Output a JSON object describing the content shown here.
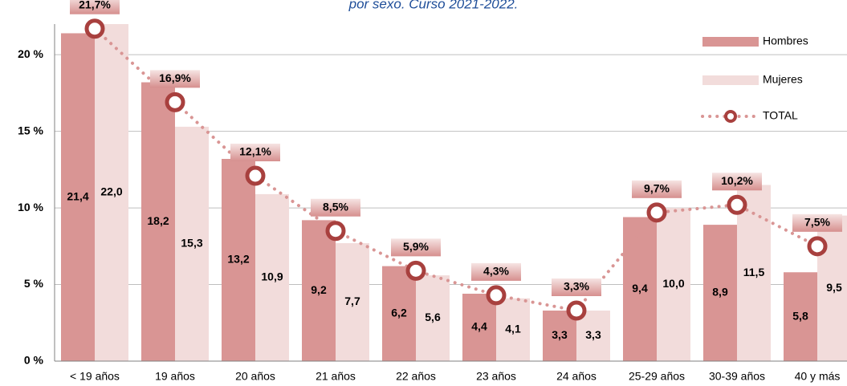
{
  "chart_data": {
    "type": "bar",
    "title": "por sexo. Curso 2021-2022.",
    "categories": [
      "< 19 años",
      "19 años",
      "20 años",
      "21 años",
      "22 años",
      "23 años",
      "24 años",
      "25-29 años",
      "30-39 años",
      "40 y más"
    ],
    "series": [
      {
        "name": "Hombres",
        "color": "#d99594",
        "values": [
          21.4,
          18.2,
          13.2,
          9.2,
          6.2,
          4.4,
          3.3,
          9.4,
          8.9,
          5.8
        ],
        "value_labels": [
          "21,4",
          "18,2",
          "13,2",
          "9,2",
          "6,2",
          "4,4",
          "3,3",
          "9,4",
          "8,9",
          "5,8"
        ]
      },
      {
        "name": "Mujeres",
        "color": "#f2dcdb",
        "values": [
          22.0,
          15.3,
          10.9,
          7.7,
          5.6,
          4.1,
          3.3,
          10.0,
          11.5,
          9.5
        ],
        "value_labels": [
          "22,0",
          "15,3",
          "10,9",
          "7,7",
          "5,6",
          "4,1",
          "3,3",
          "10,0",
          "11,5",
          "9,5"
        ]
      },
      {
        "name": "TOTAL",
        "type": "line",
        "color": "#d99594",
        "marker_color": "#a8403e",
        "values": [
          21.7,
          16.9,
          12.1,
          8.5,
          5.9,
          4.3,
          3.3,
          9.7,
          10.2,
          7.5
        ],
        "value_labels": [
          "21,7%",
          "16,9%",
          "12,1%",
          "8,5%",
          "5,9%",
          "4,3%",
          "3,3%",
          "9,7%",
          "10,2%",
          "7,5%"
        ]
      }
    ],
    "ylim": [
      0,
      22
    ],
    "yticks": [
      {
        "value": 0,
        "label": "0 %"
      },
      {
        "value": 5,
        "label": "5 %"
      },
      {
        "value": 10,
        "label": "10 %"
      },
      {
        "value": 15,
        "label": "15 %"
      },
      {
        "value": 20,
        "label": "20 %"
      }
    ],
    "grid": true,
    "legend": "top-right"
  }
}
